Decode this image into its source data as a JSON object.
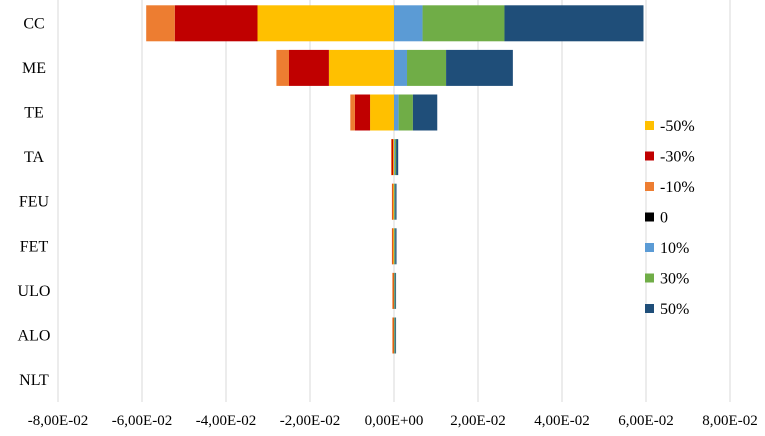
{
  "chart_data": {
    "type": "bar",
    "orientation": "horizontal",
    "stacked": "diverging",
    "categories": [
      "CC",
      "ME",
      "TE",
      "TA",
      "FEU",
      "FET",
      "ULO",
      "ALO",
      "NLT"
    ],
    "series": [
      {
        "name": "-50%",
        "color": "#FFC000",
        "side": "negative",
        "values": [
          -0.0325,
          -0.0155,
          -0.0057,
          -0.0002,
          -0.0002,
          -0.0002,
          -0.0001,
          -0.0001,
          0
        ]
      },
      {
        "name": "-30%",
        "color": "#C00000",
        "side": "negative",
        "values": [
          -0.0197,
          -0.0095,
          -0.0036,
          -0.0004,
          -0.0002,
          -0.0002,
          -0.0002,
          -0.0002,
          0
        ]
      },
      {
        "name": "-10%",
        "color": "#ED7D31",
        "side": "negative",
        "values": [
          -0.0068,
          -0.003,
          -0.0011,
          -0.0001,
          -0.0001,
          -0.0001,
          -0.0001,
          -0.0001,
          0
        ]
      },
      {
        "name": "0",
        "color": "#000000",
        "side": "positive",
        "values": [
          0,
          0,
          0,
          0,
          0,
          0,
          0,
          0,
          0
        ]
      },
      {
        "name": "10%",
        "color": "#5B9BD5",
        "side": "positive",
        "values": [
          0.0068,
          0.0031,
          0.0011,
          0.0002,
          0.0001,
          0.0001,
          0.0001,
          0.0001,
          0
        ]
      },
      {
        "name": "30%",
        "color": "#70AD47",
        "side": "positive",
        "values": [
          0.0195,
          0.0093,
          0.0034,
          0.0003,
          0.0002,
          0.0002,
          0.0002,
          0.0002,
          0
        ]
      },
      {
        "name": "50%",
        "color": "#1F4E79",
        "side": "positive",
        "values": [
          0.0331,
          0.0159,
          0.0058,
          0.0005,
          0.0003,
          0.0003,
          0.0001,
          0.0001,
          0
        ]
      }
    ],
    "x_ticks": [
      -0.08,
      -0.06,
      -0.04,
      -0.02,
      0,
      0.02,
      0.04,
      0.06,
      0.08
    ],
    "x_tick_labels": [
      "-8,00E-02",
      "-6,00E-02",
      "-4,00E-02",
      "-2,00E-02",
      "0,00E+00",
      "2,00E-02",
      "4,00E-02",
      "6,00E-02",
      "8,00E-02"
    ],
    "xlim": [
      -0.08,
      0.08
    ],
    "grid": "vertical",
    "legend_position": "right",
    "legend_order": [
      "-50%",
      "-30%",
      "-10%",
      "0",
      "10%",
      "30%",
      "50%"
    ],
    "title": "",
    "xlabel": "",
    "ylabel": ""
  }
}
